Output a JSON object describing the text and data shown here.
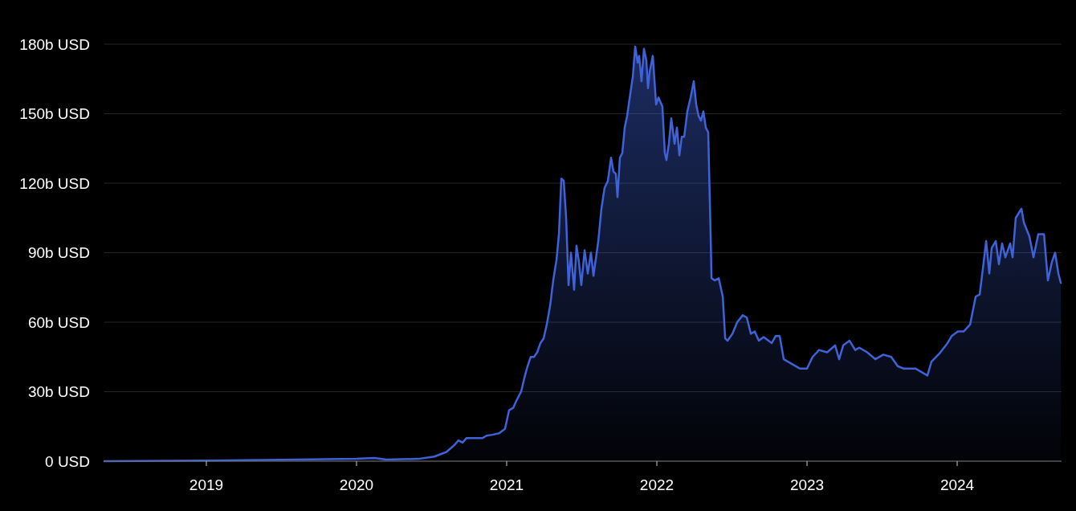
{
  "chart_data": {
    "type": "area",
    "grid": "y",
    "xlim": [
      2018.321,
      2024.695
    ],
    "ylim": [
      0,
      180
    ],
    "xticks": [
      2019,
      2020,
      2021,
      2022,
      2023,
      2024
    ],
    "yticks": [
      {
        "value": 0,
        "label": "0 USD"
      },
      {
        "value": 30,
        "label": "30b USD"
      },
      {
        "value": 60,
        "label": "60b USD"
      },
      {
        "value": 90,
        "label": "90b USD"
      },
      {
        "value": 120,
        "label": "120b USD"
      },
      {
        "value": 150,
        "label": "150b USD"
      },
      {
        "value": 180,
        "label": "180b USD"
      }
    ],
    "series": [
      {
        "color": "#3f62d9",
        "x": [
          2018.321,
          2019,
          2019.497,
          2020,
          2020.118,
          2020.198,
          2020.412,
          2020.519,
          2020.599,
          2020.652,
          2020.679,
          2020.706,
          2020.733,
          2020.786,
          2020.84,
          2020.866,
          2020.904,
          2020.947,
          2020.989,
          2021.016,
          2021.043,
          2021.064,
          2021.096,
          2021.118,
          2021.139,
          2021.16,
          2021.182,
          2021.203,
          2021.225,
          2021.246,
          2021.267,
          2021.289,
          2021.31,
          2021.332,
          2021.348,
          2021.364,
          2021.38,
          2021.396,
          2021.412,
          2021.428,
          2021.449,
          2021.465,
          2021.481,
          2021.497,
          2021.519,
          2021.54,
          2021.561,
          2021.578,
          2021.61,
          2021.631,
          2021.652,
          2021.674,
          2021.695,
          2021.711,
          2021.727,
          2021.738,
          2021.754,
          2021.77,
          2021.786,
          2021.802,
          2021.824,
          2021.84,
          2021.856,
          2021.872,
          2021.882,
          2021.898,
          2021.914,
          2021.93,
          2021.941,
          2021.952,
          2021.973,
          2021.995,
          2022.011,
          2022.037,
          2022.053,
          2022.064,
          2022.08,
          2022.096,
          2022.118,
          2022.134,
          2022.15,
          2022.166,
          2022.182,
          2022.203,
          2022.225,
          2022.246,
          2022.262,
          2022.278,
          2022.294,
          2022.31,
          2022.326,
          2022.342,
          2022.358,
          2022.364,
          2022.385,
          2022.412,
          2022.439,
          2022.455,
          2022.471,
          2022.503,
          2022.535,
          2022.572,
          2022.599,
          2022.626,
          2022.652,
          2022.679,
          2022.711,
          2022.765,
          2022.791,
          2022.818,
          2022.845,
          2022.898,
          2022.952,
          2023,
          2023.037,
          2023.08,
          2023.134,
          2023.187,
          2023.214,
          2023.241,
          2023.283,
          2023.321,
          2023.348,
          2023.401,
          2023.455,
          2023.508,
          2023.561,
          2023.604,
          2023.642,
          2023.684,
          2023.722,
          2023.802,
          2023.829,
          2023.882,
          2023.936,
          2023.963,
          2024.005,
          2024.043,
          2024.086,
          2024.123,
          2024.15,
          2024.171,
          2024.193,
          2024.214,
          2024.23,
          2024.257,
          2024.278,
          2024.299,
          2024.321,
          2024.353,
          2024.369,
          2024.39,
          2024.428,
          2024.444,
          2024.481,
          2024.508,
          2024.54,
          2024.578,
          2024.604,
          2024.631,
          2024.652,
          2024.674,
          2024.69
        ],
        "values": [
          0,
          0.3,
          0.6,
          1,
          1.4,
          0.7,
          1,
          2,
          4,
          7,
          9,
          8,
          10,
          10,
          10,
          11,
          11.4,
          12,
          14,
          22,
          23,
          26,
          30,
          36,
          41,
          45,
          45,
          47,
          51,
          53,
          59,
          67,
          78,
          87,
          98,
          122,
          121,
          105,
          76,
          90,
          74,
          93,
          86,
          76,
          91,
          81,
          90,
          80,
          95,
          109,
          118,
          121,
          131,
          125,
          124,
          114,
          131,
          133,
          144,
          149,
          159,
          166,
          179,
          172,
          175,
          164,
          178,
          173,
          161,
          168,
          175,
          154,
          157,
          153,
          133,
          130,
          137,
          148,
          137,
          144,
          132,
          140,
          140,
          151,
          157,
          164,
          154,
          149,
          147,
          151,
          144,
          142,
          98,
          79,
          78,
          79,
          71,
          53,
          52,
          55,
          60,
          63,
          62,
          55,
          56,
          52,
          53.6,
          51,
          54,
          54,
          44,
          42,
          40,
          40,
          45,
          48,
          47,
          50,
          44,
          50,
          52,
          48,
          49,
          47,
          44,
          46,
          45,
          41,
          40,
          40,
          40,
          37,
          43,
          46.5,
          51,
          54,
          56,
          56,
          59,
          71,
          72,
          83,
          95,
          81,
          92,
          95,
          85,
          94,
          88,
          94,
          88,
          105,
          109,
          103,
          97,
          88,
          98,
          98,
          78,
          86,
          90,
          81,
          77
        ]
      }
    ]
  }
}
